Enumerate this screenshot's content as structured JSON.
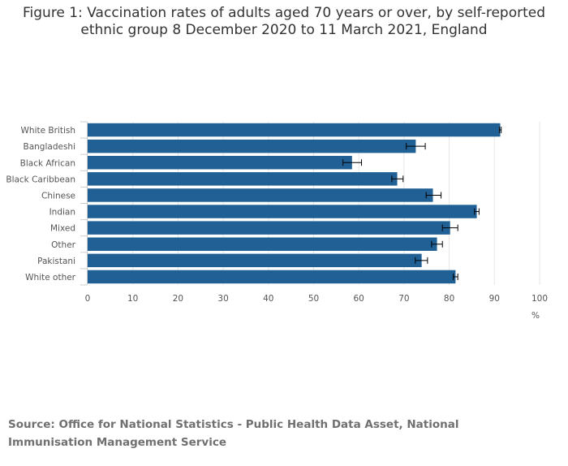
{
  "title": {
    "line1": "Figure 1: Vaccination rates of adults aged 70 years or over, by self-reported",
    "line2": "ethnic group 8 December 2020 to 11 March 2021, England"
  },
  "source": "Source: Office for National Statistics - Public Health Data Asset, National Immunisation Management Service",
  "colors": {
    "bar": "#206095",
    "error_bar": "#000000",
    "grid": "#e6e6e6"
  },
  "chart_data": {
    "type": "bar",
    "orientation": "horizontal",
    "title": "Figure 1: Vaccination rates of adults aged 70 years or over, by self-reported ethnic group 8 December 2020 to 11 March 2021, England",
    "xlabel": "%",
    "ylabel": "",
    "xlim": [
      0,
      100
    ],
    "xticks": [
      0,
      10,
      20,
      30,
      40,
      50,
      60,
      70,
      80,
      90,
      100
    ],
    "grid": true,
    "categories": [
      "White British",
      "Bangladeshi",
      "Black African",
      "Black Caribbean",
      "Chinese",
      "Indian",
      "Mixed",
      "Other",
      "Pakistani",
      "White other"
    ],
    "values": [
      91.3,
      72.6,
      58.5,
      68.5,
      76.4,
      86.1,
      80.2,
      77.3,
      73.9,
      81.4
    ],
    "error_low": [
      91.1,
      70.5,
      56.5,
      67.3,
      74.9,
      85.6,
      78.5,
      76.1,
      72.5,
      80.9
    ],
    "error_high": [
      91.5,
      74.7,
      60.6,
      69.8,
      78.2,
      86.6,
      81.9,
      78.5,
      75.2,
      81.9
    ]
  }
}
